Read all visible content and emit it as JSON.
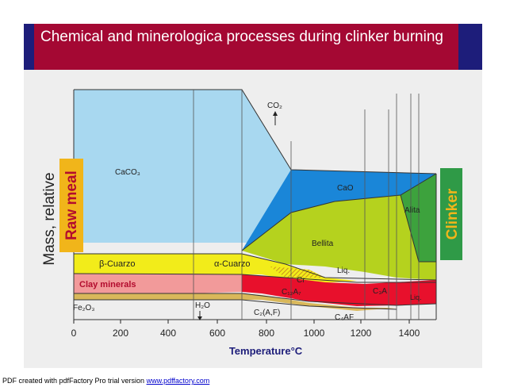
{
  "slide": {
    "title": "Chemical and minerologica processes during clinker burning"
  },
  "diagram": {
    "y_axis_label": "Mass, relative",
    "x_axis_label": "Temperature°C",
    "x_ticks": [
      "0",
      "200",
      "400",
      "600",
      "800",
      "1000",
      "1200",
      "1400"
    ],
    "left_badge": "Raw meal",
    "right_badge": "Clinker",
    "regions": {
      "caco3": "CaCO₃",
      "co2": "CO₂",
      "cao": "CaO",
      "alita": "Alita",
      "bellita": "Bellita",
      "beta_quartz": "β-Cuarzo",
      "alpha_quartz": "α-Cuarzo",
      "clay": "Clay minerals",
      "fe2o3": "Fe₂O₃",
      "h2o": "H₂O",
      "c2af": "C₂(A,F)",
      "c4af": "C₄AF",
      "cr": "Cr",
      "c12a7": "C₁₂A₇",
      "c3a": "C₃A",
      "liq": "Liq.",
      "liq2": "Liq."
    },
    "colors": {
      "background": "#eeeeee",
      "caco3": "#a8d8f0",
      "cao": "#1a86d8",
      "bellita": "#b5d21e",
      "alita": "#3da23d",
      "quartz": "#f2ec1a",
      "clay": "#f29a9a",
      "liquid": "#e8102c",
      "raw_meal": "#f1b51a",
      "clinker": "#2f9a47",
      "badge_text": "#b30c2e"
    }
  },
  "footer": {
    "prefix": "PDF created with pdfFactory Pro trial version ",
    "link": "www.pdffactory.com"
  }
}
